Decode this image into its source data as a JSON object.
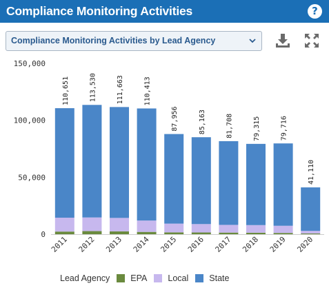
{
  "header": {
    "title": "Compliance Monitoring Activities",
    "help_icon": "question-circle-icon"
  },
  "selector": {
    "value": "Compliance Monitoring Activities by Lead Agency"
  },
  "toolbar": {
    "download_icon": "download-icon",
    "expand_icon": "expand-icon"
  },
  "colors": {
    "header_bg": "#1b6fb6",
    "EPA": "#6a8a3e",
    "Local": "#c7b8ee",
    "State": "#4a86c8"
  },
  "chart_data": {
    "type": "bar",
    "stacked": true,
    "categories": [
      "2011",
      "2012",
      "2013",
      "2014",
      "2015",
      "2016",
      "2017",
      "2018",
      "2019",
      "2020"
    ],
    "series": [
      {
        "name": "EPA",
        "values": [
          2300,
          2700,
          2500,
          2000,
          1600,
          1500,
          1400,
          1300,
          1100,
          600
        ]
      },
      {
        "name": "Local",
        "values": [
          12200,
          12000,
          11800,
          10000,
          7700,
          7400,
          6800,
          6700,
          6300,
          2300
        ]
      },
      {
        "name": "State",
        "values": [
          96151,
          98830,
          97363,
          98413,
          78656,
          76263,
          73508,
          71315,
          72316,
          38210
        ]
      }
    ],
    "totals": [
      110651,
      113530,
      111663,
      110413,
      87956,
      85163,
      81708,
      79315,
      79716,
      41110
    ],
    "total_labels": [
      "110,651",
      "113,530",
      "111,663",
      "110,413",
      "87,956",
      "85,163",
      "81,708",
      "79,315",
      "79,716",
      "41,110"
    ],
    "yticks": [
      "0",
      "50,000",
      "100,000",
      "150,000"
    ],
    "ylim": [
      0,
      150000
    ],
    "legend_title": "Lead Agency",
    "legend_position": "bottom"
  }
}
